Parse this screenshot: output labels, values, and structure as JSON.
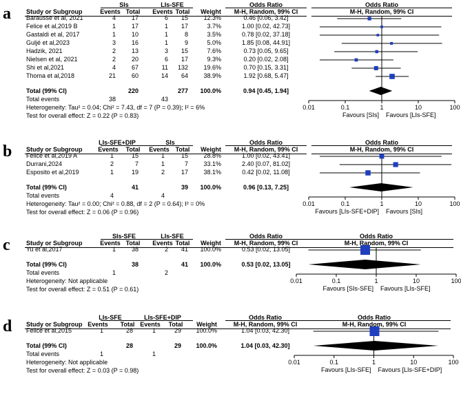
{
  "chart_data": [
    {
      "type": "forest",
      "panel_label": "a",
      "group1": "SIs",
      "group2": "LIs-SFE",
      "col_headers": {
        "study": "Study or Subgroup",
        "events": "Events",
        "total": "Total",
        "weight": "Weight",
        "or_text": "Odds Ratio",
        "or_method": "M-H, Random, 99% CI",
        "plot_title": "Odds Ratio",
        "plot_method": "M-H, Random, 99% CI"
      },
      "studies": [
        {
          "name": "Barausse et al, 2021",
          "e1": "4",
          "n1": "17",
          "e2": "6",
          "n2": "15",
          "weight": "12.3%",
          "ci_text": "0.46 [0.06, 3.42]",
          "or": 0.46,
          "lo": 0.06,
          "hi": 3.42,
          "w": 12.3
        },
        {
          "name": "Felice et al,2019 B",
          "e1": "1",
          "n1": "17",
          "e2": "1",
          "n2": "17",
          "weight": "3.7%",
          "ci_text": "1.00 [0.02, 42.73]",
          "or": 1.0,
          "lo": 0.02,
          "hi": 42.73,
          "w": 3.7
        },
        {
          "name": "Gastaldi et al, 2017",
          "e1": "1",
          "n1": "10",
          "e2": "1",
          "n2": "8",
          "weight": "3.5%",
          "ci_text": "0.78 [0.02, 37.18]",
          "or": 0.78,
          "lo": 0.02,
          "hi": 37.18,
          "w": 3.5
        },
        {
          "name": "Guljé et al,2023",
          "e1": "3",
          "n1": "16",
          "e2": "1",
          "n2": "9",
          "weight": "5.0%",
          "ci_text": "1.85 [0.08, 44.91]",
          "or": 1.85,
          "lo": 0.08,
          "hi": 44.91,
          "w": 5.0
        },
        {
          "name": "Hadzik, 2021",
          "e1": "2",
          "n1": "13",
          "e2": "3",
          "n2": "15",
          "weight": "7.6%",
          "ci_text": "0.73 [0.05, 9.65]",
          "or": 0.73,
          "lo": 0.05,
          "hi": 9.65,
          "w": 7.6
        },
        {
          "name": "Nielsen et al, 2021",
          "e1": "2",
          "n1": "20",
          "e2": "6",
          "n2": "17",
          "weight": "9.3%",
          "ci_text": "0.20 [0.02, 2.08]",
          "or": 0.2,
          "lo": 0.02,
          "hi": 2.08,
          "w": 9.3
        },
        {
          "name": "Shi et al,2021",
          "e1": "4",
          "n1": "67",
          "e2": "11",
          "n2": "132",
          "weight": "19.6%",
          "ci_text": "0.70 [0.15, 3.31]",
          "or": 0.7,
          "lo": 0.15,
          "hi": 3.31,
          "w": 19.6
        },
        {
          "name": "Thoma et al,2018",
          "e1": "21",
          "n1": "60",
          "e2": "14",
          "n2": "64",
          "weight": "38.9%",
          "ci_text": "1.92 [0.68, 5.47]",
          "or": 1.92,
          "lo": 0.68,
          "hi": 5.47,
          "w": 38.9
        }
      ],
      "total": {
        "label": "Total (99% CI)",
        "n1": "220",
        "n2": "277",
        "weight": "100.0%",
        "ci_text": "0.94 [0.45, 1.94]",
        "or": 0.94,
        "lo": 0.45,
        "hi": 1.94
      },
      "events": {
        "label": "Total events",
        "e1": "38",
        "e2": "43"
      },
      "heterogeneity": "Heterogeneity: Tau² = 0.04; Chi² = 7.43, df = 7 (P = 0.39); I² = 6%",
      "overall_effect": "Test for overall effect: Z = 0.22 (P = 0.83)",
      "x_ticks": [
        "0.01",
        "0.1",
        "1",
        "10",
        "100"
      ],
      "x_tick_values": [
        0.01,
        0.1,
        1,
        10,
        100
      ],
      "favours_left": "Favours [SIs]",
      "favours_right": "Favours [LIs-SFE]",
      "x_scale": "log"
    },
    {
      "type": "forest",
      "panel_label": "b",
      "group1": "LIs-SFE+DIP",
      "group2": "SIs",
      "col_headers": {
        "study": "Study or Subgroup",
        "events": "Events",
        "total": "Total",
        "weight": "Weight",
        "or_text": "Odds Ratio",
        "or_method": "M-H, Random, 99% CI",
        "plot_title": "Odds Ratio",
        "plot_method": "M-H, Random, 99% CI"
      },
      "studies": [
        {
          "name": "Felice et al,2019 A",
          "e1": "1",
          "n1": "15",
          "e2": "1",
          "n2": "15",
          "weight": "28.8%",
          "ci_text": "1.00 [0.02, 43.41]",
          "or": 1.0,
          "lo": 0.02,
          "hi": 43.41,
          "w": 28.8
        },
        {
          "name": "Durrani,2024",
          "e1": "2",
          "n1": "7",
          "e2": "1",
          "n2": "7",
          "weight": "33.1%",
          "ci_text": "2.40 [0.07, 81.02]",
          "or": 2.4,
          "lo": 0.07,
          "hi": 81.02,
          "w": 33.1
        },
        {
          "name": "Esposito et al,2019",
          "e1": "1",
          "n1": "19",
          "e2": "2",
          "n2": "17",
          "weight": "38.1%",
          "ci_text": "0.42 [0.02, 11.08]",
          "or": 0.42,
          "lo": 0.02,
          "hi": 11.08,
          "w": 38.1
        }
      ],
      "total": {
        "label": "Total (99% CI)",
        "n1": "41",
        "n2": "39",
        "weight": "100.0%",
        "ci_text": "0.96 [0.13, 7.25]",
        "or": 0.96,
        "lo": 0.13,
        "hi": 7.25
      },
      "events": {
        "label": "Total events",
        "e1": "4",
        "e2": "4"
      },
      "heterogeneity": "Heterogeneity: Tau² = 0.00; Chi² = 0.88, df = 2 (P = 0.64); I² = 0%",
      "overall_effect": "Test for overall effect: Z = 0.06 (P = 0.96)",
      "x_ticks": [
        "0.01",
        "0.1",
        "1",
        "10",
        "100"
      ],
      "x_tick_values": [
        0.01,
        0.1,
        1,
        10,
        100
      ],
      "favours_left": "Favours [LIs-SFE+DIP]",
      "favours_right": "Favours [SIs]",
      "x_scale": "log"
    },
    {
      "type": "forest",
      "panel_label": "c",
      "group1": "SIs-SFE",
      "group2": "LIs-SFE",
      "col_headers": {
        "study": "Study or Subgroup",
        "events": "Events",
        "total": "Total",
        "weight": "Weight",
        "or_text": "Odds Ratio",
        "or_method": "M-H, Random, 99% CI",
        "plot_title": "Odds Ratio",
        "plot_method": "M-H, Random, 99% CI"
      },
      "studies": [
        {
          "name": "Yu et al,2017",
          "e1": "1",
          "n1": "38",
          "e2": "2",
          "n2": "41",
          "weight": "100.0%",
          "ci_text": "0.53 [0.02, 13.05]",
          "or": 0.53,
          "lo": 0.02,
          "hi": 13.05,
          "w": 100.0
        }
      ],
      "total": {
        "label": "Total (99% CI)",
        "n1": "38",
        "n2": "41",
        "weight": "100.0%",
        "ci_text": "0.53 [0.02, 13.05]",
        "or": 0.53,
        "lo": 0.02,
        "hi": 13.05
      },
      "events": {
        "label": "Total events",
        "e1": "1",
        "e2": "2"
      },
      "heterogeneity": "Heterogeneity: Not applicable",
      "overall_effect": "Test for overall effect: Z = 0.51 (P = 0.61)",
      "x_ticks": [
        "0.01",
        "0.1",
        "1",
        "10",
        "100"
      ],
      "x_tick_values": [
        0.01,
        0.1,
        1,
        10,
        100
      ],
      "favours_left": "Favours [SIs-SFE]",
      "favours_right": "Favours [LIs-SFE]",
      "x_scale": "log"
    },
    {
      "type": "forest",
      "panel_label": "d",
      "group1": "LIs-SFE",
      "group2": "LIs-SFE+DIP",
      "col_headers": {
        "study": "Study or Subgroup",
        "events": "Events",
        "total": "Total",
        "weight": "Weight",
        "or_text": "Odds Ratio",
        "or_method": "M-H, Random, 99% CI",
        "plot_title": "Odds Ratio",
        "plot_method": "M-H, Random, 99% CI"
      },
      "studies": [
        {
          "name": "Felice et al,2015",
          "e1": "1",
          "n1": "28",
          "e2": "1",
          "n2": "29",
          "weight": "100.0%",
          "ci_text": "1.04 [0.03, 42.30]",
          "or": 1.04,
          "lo": 0.03,
          "hi": 42.3,
          "w": 100.0
        }
      ],
      "total": {
        "label": "Total (99% CI)",
        "n1": "28",
        "n2": "29",
        "weight": "100.0%",
        "ci_text": "1.04 [0.03, 42.30]",
        "or": 1.04,
        "lo": 0.03,
        "hi": 42.3
      },
      "events": {
        "label": "Total events",
        "e1": "1",
        "e2": "1"
      },
      "heterogeneity": "Heterogeneity: Not applicable",
      "overall_effect": "Test for overall effect: Z = 0.03 (P = 0.98)",
      "x_ticks": [
        "0.01",
        "0.1",
        "1",
        "10",
        "100"
      ],
      "x_tick_values": [
        0.01,
        0.1,
        1,
        10,
        100
      ],
      "favours_left": "Favours [LIs-SFE]",
      "favours_right": "Favours [LIs-SFE+DIP]",
      "x_scale": "log"
    }
  ],
  "colors": {
    "marker": "#1f3fbf",
    "diamond": "#000000",
    "line": "#000000"
  }
}
